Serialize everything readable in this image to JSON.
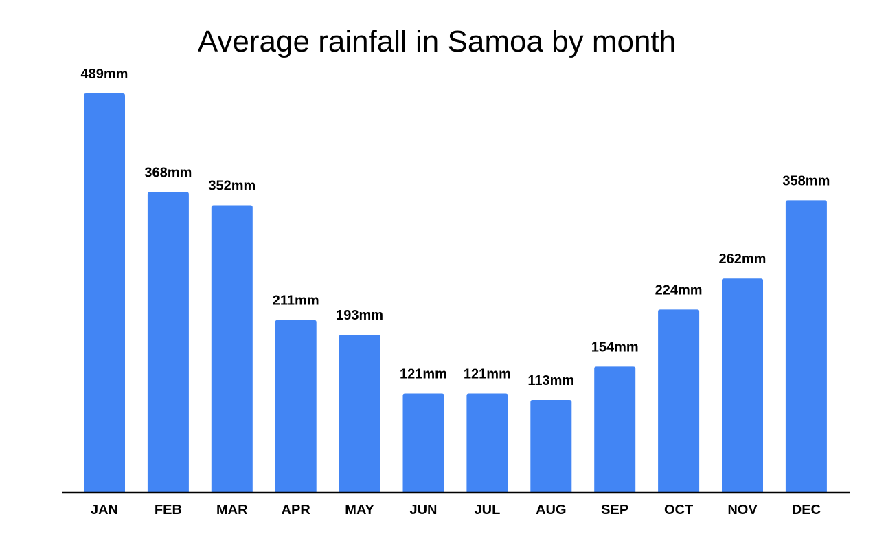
{
  "chart_data": {
    "type": "bar",
    "title": "Average rainfall in Samoa by month",
    "xlabel": "",
    "ylabel": "",
    "categories": [
      "JAN",
      "FEB",
      "MAR",
      "APR",
      "MAY",
      "JUN",
      "JUL",
      "AUG",
      "SEP",
      "OCT",
      "NOV",
      "DEC"
    ],
    "values": [
      489,
      368,
      352,
      211,
      193,
      121,
      121,
      113,
      154,
      224,
      262,
      358
    ],
    "data_labels": [
      "489mm",
      "368mm",
      "352mm",
      "211mm",
      "193mm",
      "121mm",
      "121mm",
      "113mm",
      "154mm",
      "224mm",
      "262mm",
      "358mm"
    ],
    "unit": "mm",
    "ylim": [
      0,
      489
    ],
    "grid": false,
    "legend": "none",
    "bar_color": "#4285f4"
  }
}
